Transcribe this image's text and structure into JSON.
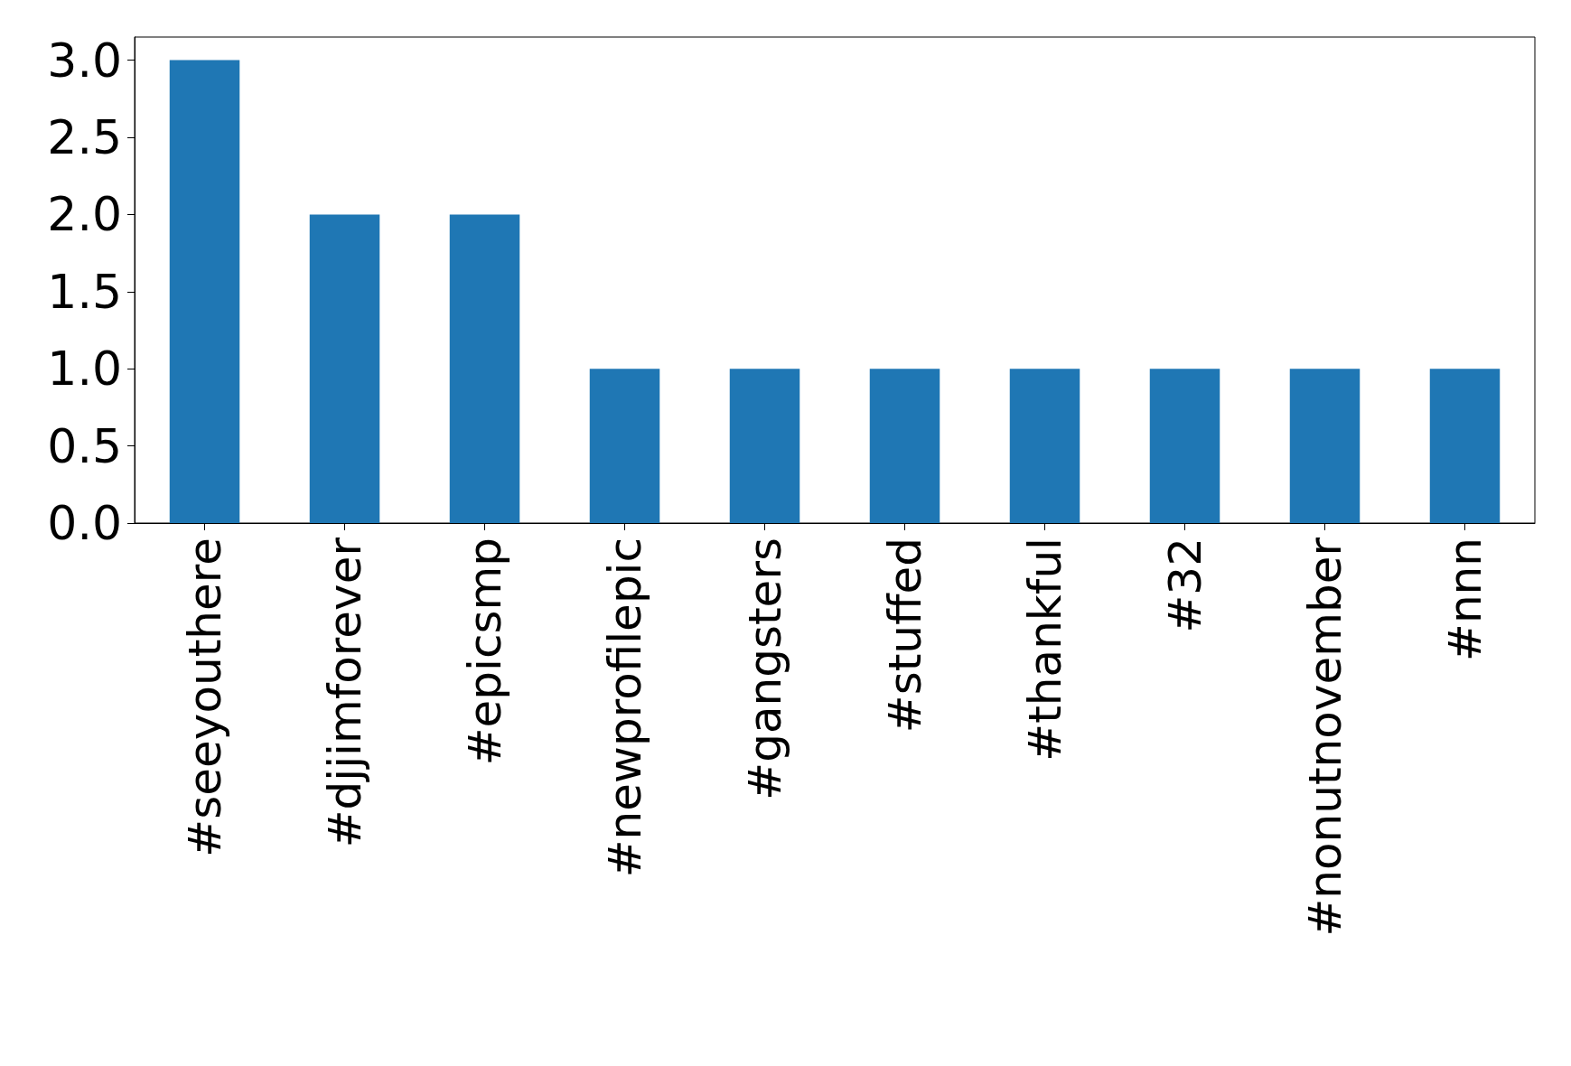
{
  "chart_data": {
    "type": "bar",
    "categories": [
      "#seeyouthere",
      "#djjimforever",
      "#epicsmp",
      "#newprofilepic",
      "#gangsters",
      "#stuffed",
      "#thankful",
      "#32",
      "#nonutnovember",
      "#nnn"
    ],
    "values": [
      3,
      2,
      2,
      1,
      1,
      1,
      1,
      1,
      1,
      1
    ],
    "color": "#1f77b4",
    "ylim": [
      0,
      3.15
    ],
    "yticks": [
      {
        "value": 0,
        "label": "0.0"
      },
      {
        "value": 0.5,
        "label": "0.5"
      },
      {
        "value": 1,
        "label": "1.0"
      },
      {
        "value": 1.5,
        "label": "1.5"
      },
      {
        "value": 2,
        "label": "2.0"
      },
      {
        "value": 2.5,
        "label": "2.5"
      },
      {
        "value": 3,
        "label": "3.0"
      }
    ],
    "grid": false
  }
}
